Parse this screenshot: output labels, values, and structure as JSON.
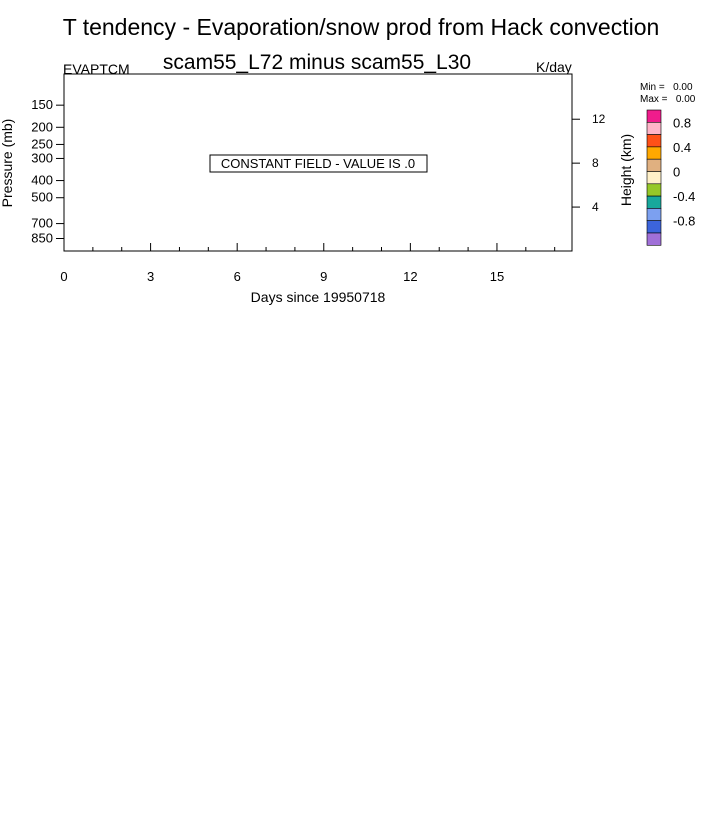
{
  "chart_data": {
    "type": "heatmap",
    "title": "T tendency - Evaporation/snow prod from Hack convection",
    "subtitle": "scam55_L72 minus scam55_L30",
    "left_label": "EVAPTCM",
    "right_label": "K/day",
    "xlabel": "Days since 19950718",
    "ylabel": "Pressure (mb)",
    "y2label": "Height (km)",
    "x_ticks": [
      0,
      3,
      6,
      9,
      12,
      15
    ],
    "xlim": [
      0,
      17.6
    ],
    "y_ticks": [
      150,
      200,
      250,
      300,
      400,
      500,
      700,
      850
    ],
    "ylim": [
      100,
      1000
    ],
    "y_scale": "log",
    "y2_ticks": [
      12,
      8,
      4
    ],
    "annotation": "CONSTANT FIELD - VALUE IS .0",
    "stats": {
      "min_label": "Min =",
      "min_value": "0.00",
      "max_label": "Max =",
      "max_value": "0.00"
    },
    "colorbar": {
      "colors": [
        "#f01c8c",
        "#ffb4c8",
        "#ff5018",
        "#ffa800",
        "#e0b080",
        "#fff0c8",
        "#96c828",
        "#18a89c",
        "#7ca0f0",
        "#3c64dc",
        "#a070d8"
      ],
      "labels": [
        "0.8",
        "0.4",
        "0",
        "-0.4",
        "-0.8"
      ]
    }
  }
}
